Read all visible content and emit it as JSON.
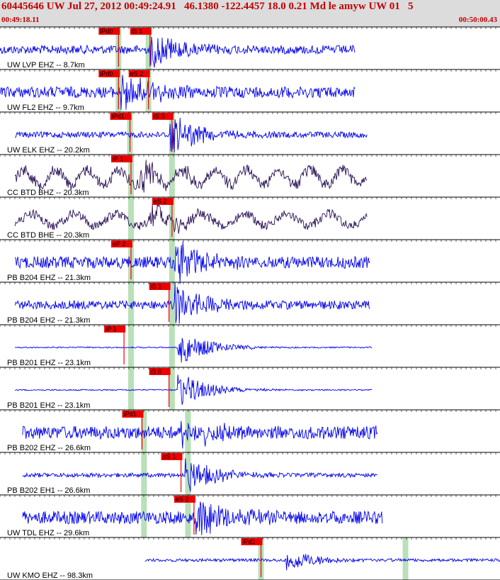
{
  "header": {
    "title": "60445646 UW Jul 27, 2012 00:49:24.91   46.1380 -122.4457 18.0 0.21 Md le amyw UW 01   5",
    "time_start": "00:49:18.11",
    "time_end": "00:50:00.43"
  },
  "colors": {
    "header_bg": "#dcdcdc",
    "header_text": "#c00000",
    "trace_blue": "#0000ee",
    "trace_dark": "#2a1055",
    "pick_box": "#ee0000",
    "pick_window": "#b9e0b9"
  },
  "chart_data": {
    "type": "line",
    "x_unit": "time",
    "x_start": "00:49:18.11",
    "x_end": "00:50:00.43",
    "tick_marks": "vertical minor ticks along each trace panel top/bottom edge",
    "traces": [
      {
        "label": "UW LVP EHZ -- 8.7km",
        "color": "blue",
        "trace_start_frac": 0.0,
        "trace_end_frac": 0.71,
        "amplitude": 0.1,
        "wavelength": 0,
        "picks": [
          {
            "label": "iPd0",
            "frac": 0.237
          },
          {
            "label": "iS 1",
            "frac": 0.3
          }
        ],
        "onset_frac": 0.3,
        "burst_amp": 0.45
      },
      {
        "label": "UW FL2 EHZ -- 9.7km",
        "color": "blue",
        "trace_start_frac": 0.0,
        "trace_end_frac": 0.71,
        "amplitude": 0.13,
        "wavelength": 0,
        "picks": [
          {
            "label": "iPd0",
            "frac": 0.237
          },
          {
            "label": "eS 2",
            "frac": 0.297
          }
        ],
        "onset_frac": 0.24,
        "burst_amp": 0.55
      },
      {
        "label": "UW ELK EHZ -- 20.2km",
        "color": "blue",
        "trace_start_frac": 0.03,
        "trace_end_frac": 0.735,
        "amplitude": 0.07,
        "wavelength": 0,
        "picks": [
          {
            "label": "iPd1",
            "frac": 0.26
          },
          {
            "label": "iS 0",
            "frac": 0.344
          }
        ],
        "onset_frac": 0.34,
        "burst_amp": 0.5
      },
      {
        "label": "CC BTD BHZ -- 20.3km",
        "color": "dark",
        "trace_start_frac": 0.03,
        "trace_end_frac": 0.735,
        "amplitude": 0.22,
        "wavelength": 45,
        "picks": [
          {
            "label": "iP 1",
            "frac": 0.262
          }
        ],
        "onset_frac": 0.28,
        "burst_amp": 0.35
      },
      {
        "label": "CC BTD BHE -- 20.3km",
        "color": "dark",
        "trace_start_frac": 0.03,
        "trace_end_frac": 0.735,
        "amplitude": 0.18,
        "wavelength": 60,
        "picks": [
          {
            "label": "eS 2",
            "frac": 0.344
          }
        ],
        "onset_frac": 0.3,
        "burst_amp": 0.3
      },
      {
        "label": "PB B204 EHZ -- 21.3km",
        "color": "blue",
        "trace_start_frac": 0.03,
        "trace_end_frac": 0.74,
        "amplitude": 0.14,
        "wavelength": 0,
        "picks": [
          {
            "label": "eP 2",
            "frac": 0.262
          }
        ],
        "onset_frac": 0.35,
        "burst_amp": 0.5
      },
      {
        "label": "PB B204 EH2 -- 21.3km",
        "color": "blue",
        "trace_start_frac": 0.03,
        "trace_end_frac": 0.74,
        "amplitude": 0.1,
        "wavelength": 0,
        "picks": [
          {
            "label": "iS 1",
            "frac": 0.338
          }
        ],
        "onset_frac": 0.35,
        "burst_amp": 0.5
      },
      {
        "label": "PB B201 EHZ -- 23.1km",
        "color": "blue",
        "trace_start_frac": 0.03,
        "trace_end_frac": 0.745,
        "amplitude": 0.015,
        "wavelength": 0,
        "picks": [
          {
            "label": "iP 1",
            "frac": 0.248
          }
        ],
        "onset_frac": 0.355,
        "burst_amp": 0.45
      },
      {
        "label": "PB B201 EH2 -- 23.1km",
        "color": "blue",
        "trace_start_frac": 0.03,
        "trace_end_frac": 0.745,
        "amplitude": 0.015,
        "wavelength": 0,
        "picks": [
          {
            "label": "iS 0",
            "frac": 0.338
          }
        ],
        "onset_frac": 0.355,
        "burst_amp": 0.45
      },
      {
        "label": "PB B202 EHZ -- 26.6km",
        "color": "blue",
        "trace_start_frac": 0.045,
        "trace_end_frac": 0.755,
        "amplitude": 0.15,
        "wavelength": 0,
        "picks": [
          {
            "label": "iPd1",
            "frac": 0.284
          }
        ],
        "onset_frac": 0.36,
        "burst_amp": 0.45
      },
      {
        "label": "PB B202 EH1 -- 26.6km",
        "color": "blue",
        "trace_start_frac": 0.045,
        "trace_end_frac": 0.755,
        "amplitude": 0.05,
        "wavelength": 0,
        "picks": [
          {
            "label": "eS 1",
            "frac": 0.362
          }
        ],
        "onset_frac": 0.37,
        "burst_amp": 0.45
      },
      {
        "label": "UW TDL EHZ -- 29.6km",
        "color": "blue",
        "trace_start_frac": 0.045,
        "trace_end_frac": 0.765,
        "amplitude": 0.15,
        "wavelength": 0,
        "picks": [
          {
            "label": "eS 2",
            "frac": 0.388
          }
        ],
        "onset_frac": 0.39,
        "burst_amp": 0.5
      },
      {
        "label": "UW KMO EHZ -- 98.3km",
        "color": "blue",
        "trace_start_frac": 0.29,
        "trace_end_frac": 1.0,
        "amplitude": 0.035,
        "wavelength": 0,
        "picks": [
          {
            "label": "iPd1",
            "frac": 0.522
          }
        ],
        "onset_frac": 0.573,
        "burst_amp": 0.3
      }
    ],
    "pick_windows": [
      {
        "from_trace": 0,
        "to_trace": 1,
        "frac": 0.237
      },
      {
        "from_trace": 0,
        "to_trace": 1,
        "frac": 0.297
      },
      {
        "from_trace": 2,
        "to_trace": 2,
        "frac": 0.26
      },
      {
        "from_trace": 2,
        "to_trace": 2,
        "frac": 0.344
      },
      {
        "from_trace": 3,
        "to_trace": 8,
        "frac": 0.262
      },
      {
        "from_trace": 3,
        "to_trace": 8,
        "frac": 0.344
      },
      {
        "from_trace": 9,
        "to_trace": 11,
        "frac": 0.288
      },
      {
        "from_trace": 9,
        "to_trace": 11,
        "frac": 0.376
      },
      {
        "from_trace": 12,
        "to_trace": 12,
        "frac": 0.522
      },
      {
        "from_trace": 12,
        "to_trace": 12,
        "frac": 0.811
      }
    ]
  }
}
